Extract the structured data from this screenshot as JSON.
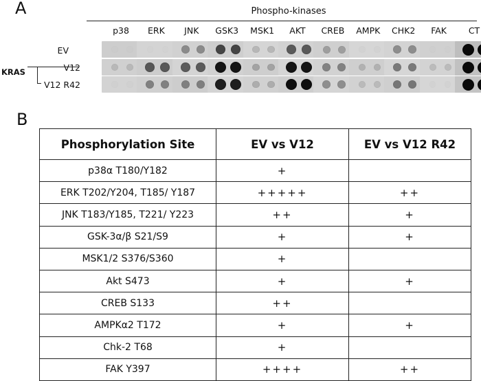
{
  "panel_a": {
    "letter": "A",
    "title": "Phospho-kinases",
    "columns": [
      "p38",
      "ERK",
      "JNK",
      "GSK3",
      "MSK1",
      "AKT",
      "CREB",
      "AMPK",
      "CHK2",
      "FAK",
      "CT"
    ],
    "group_label": "KRAS",
    "rows": [
      "EV",
      "V12",
      "V12 R42"
    ],
    "intensity": [
      [
        0.04,
        0.04,
        0.35,
        0.7,
        0.15,
        0.6,
        0.25,
        0.08,
        0.35,
        0.04,
        1.0
      ],
      [
        0.12,
        0.6,
        0.6,
        0.95,
        0.22,
        0.95,
        0.4,
        0.15,
        0.45,
        0.12,
        1.0
      ],
      [
        0.06,
        0.4,
        0.4,
        0.9,
        0.18,
        0.98,
        0.35,
        0.12,
        0.45,
        0.08,
        1.0
      ]
    ]
  },
  "panel_b": {
    "letter": "B",
    "headers": [
      "Phosphorylation Site",
      "EV vs V12",
      "EV vs V12 R42"
    ],
    "rows": [
      {
        "site": "p38α T180/Y182",
        "v12": "+",
        "r42": ""
      },
      {
        "site": "ERK T202/Y204, T185/ Y187",
        "v12": "+++++",
        "r42": "++"
      },
      {
        "site": "JNK T183/Y185, T221/ Y223",
        "v12": "++",
        "r42": "+"
      },
      {
        "site": "GSK-3α/β S21/S9",
        "v12": "+",
        "r42": "+"
      },
      {
        "site": "MSK1/2 S376/S360",
        "v12": "+",
        "r42": ""
      },
      {
        "site": "Akt S473",
        "v12": "+",
        "r42": "+"
      },
      {
        "site": "CREB S133",
        "v12": "++",
        "r42": ""
      },
      {
        "site": "AMPKα2 T172",
        "v12": "+",
        "r42": "+"
      },
      {
        "site": "Chk-2 T68",
        "v12": "+",
        "r42": ""
      },
      {
        "site": "FAK Y397",
        "v12": "++++",
        "r42": "++"
      }
    ]
  }
}
